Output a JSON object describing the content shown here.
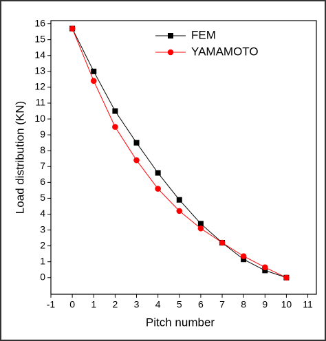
{
  "chart_data": {
    "type": "line",
    "x_label": "Pitch number",
    "y_label": "Load distribution (KN)",
    "x": [
      0,
      1,
      2,
      3,
      4,
      5,
      6,
      7,
      8,
      9,
      10
    ],
    "series": [
      {
        "name": "FEM",
        "color": "#000000",
        "marker": "square",
        "values": [
          15.7,
          13.0,
          10.5,
          8.5,
          6.6,
          4.9,
          3.4,
          2.2,
          1.15,
          0.45,
          0
        ]
      },
      {
        "name": "YAMAMOTO",
        "color": "#ff0000",
        "marker": "circle",
        "values": [
          15.7,
          12.4,
          9.5,
          7.4,
          5.6,
          4.2,
          3.1,
          2.2,
          1.35,
          0.65,
          0
        ]
      }
    ],
    "xlim": [
      -1,
      11.4
    ],
    "ylim": [
      -1.05,
      16.2
    ],
    "xticks": [
      -1,
      0,
      1,
      2,
      3,
      4,
      5,
      6,
      7,
      8,
      9,
      10,
      11
    ],
    "yticks": [
      0,
      1,
      2,
      3,
      4,
      5,
      6,
      7,
      8,
      9,
      10,
      11,
      12,
      13,
      14,
      15,
      16
    ],
    "grid": false,
    "legend": "top-right"
  }
}
